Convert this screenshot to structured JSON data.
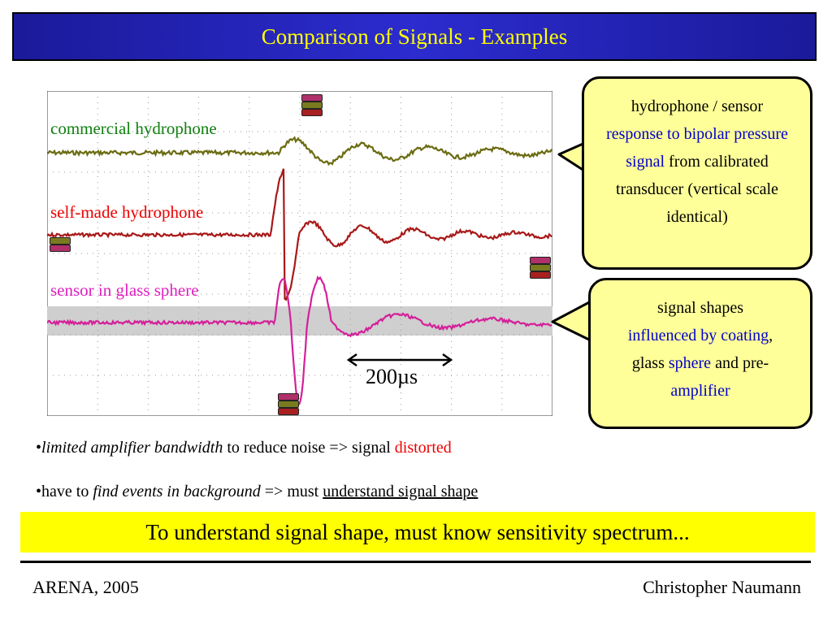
{
  "slide": {
    "title": "Comparison of Signals - Examples",
    "footer_left": "ARENA, 2005",
    "footer_right": "Christopher Naumann",
    "banner": "To understand signal shape, must know sensitivity spectrum..."
  },
  "scope": {
    "labels": {
      "commercial": "commercial hydrophone",
      "selfmade": "self-made hydrophone",
      "glass": "sensor in glass sphere"
    },
    "scale_label": "200µs",
    "colors": {
      "commercial": "#6b6b12",
      "selfmade": "#a81818",
      "glass": "#d4209a",
      "label_commercial": "#108010",
      "label_selfmade": "#ee0000",
      "label_glass": "#e020c0"
    }
  },
  "callout1": {
    "line1": "hydrophone / sensor",
    "blue": "response to bipolar pressure signal",
    "rest": "from calibrated transducer (vertical scale identical)"
  },
  "callout2": {
    "line1": "signal shapes",
    "blue1": "influenced by coating",
    "mid": ", glass",
    "blue2": "sphere",
    "mid2": "and pre-",
    "blue3": "amplifier"
  },
  "bullets": {
    "b1_italic": "limited amplifier bandwidth",
    "b1_text": "to reduce noise => signal",
    "b1_red": "distorted",
    "b2_text1": "have to",
    "b2_italic": "find events in background",
    "b2_text2": "=> must",
    "b2_underline": "understand signal shape"
  }
}
